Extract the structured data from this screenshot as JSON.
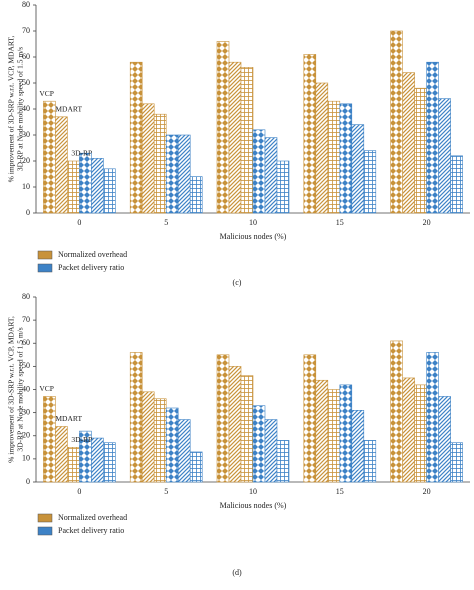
{
  "chart_data": [
    {
      "type": "bar",
      "caption": "(c)",
      "xlabel": "Malicious nodes (%)",
      "ylabel": [
        "% improvement of 3D-SRP w.r.t. VCP, MDART,",
        "3D-RP at Node mobility speed of 1.5 m/s"
      ],
      "categories": [
        "0",
        "5",
        "10",
        "15",
        "20"
      ],
      "annotations": [
        "VCP",
        "MDART",
        "3D-RP"
      ],
      "series": [
        {
          "name": "Normalized overhead",
          "color": "#c8923a",
          "values": [
            [
              43,
              37,
              20
            ],
            [
              58,
              42,
              38
            ],
            [
              66,
              58,
              56
            ],
            [
              61,
              50,
              43
            ],
            [
              70,
              54,
              48
            ]
          ]
        },
        {
          "name": "Packet delivery ratio",
          "color": "#3d82c6",
          "values": [
            [
              23,
              21,
              17
            ],
            [
              30,
              30,
              14
            ],
            [
              32,
              29,
              20
            ],
            [
              42,
              34,
              24
            ],
            [
              58,
              44,
              22
            ]
          ]
        }
      ],
      "ylim": [
        0,
        80
      ],
      "yticks": [
        0,
        10,
        20,
        30,
        40,
        50,
        60,
        70,
        80
      ]
    },
    {
      "type": "bar",
      "caption": "(d)",
      "xlabel": "Malicious nodes (%)",
      "ylabel": [
        "% improvement of 3D-SRP w.r.t. VCP, MDART,",
        "3D-RP at Node mobility speed of 1.5 m/s"
      ],
      "categories": [
        "0",
        "5",
        "10",
        "15",
        "20"
      ],
      "annotations": [
        "VCP",
        "MDART",
        "3D-RP"
      ],
      "series": [
        {
          "name": "Normalized overhead",
          "color": "#c8923a",
          "values": [
            [
              37,
              24,
              15
            ],
            [
              56,
              39,
              36
            ],
            [
              55,
              50,
              46
            ],
            [
              55,
              44,
              40
            ],
            [
              61,
              45,
              42
            ]
          ]
        },
        {
          "name": "Packet delivery ratio",
          "color": "#3d82c6",
          "values": [
            [
              22,
              19,
              17
            ],
            [
              32,
              27,
              13
            ],
            [
              33,
              27,
              18
            ],
            [
              42,
              31,
              18
            ],
            [
              56,
              37,
              17
            ]
          ]
        }
      ],
      "ylim": [
        0,
        80
      ],
      "yticks": [
        0,
        10,
        20,
        30,
        40,
        50,
        60,
        70,
        80
      ]
    }
  ]
}
